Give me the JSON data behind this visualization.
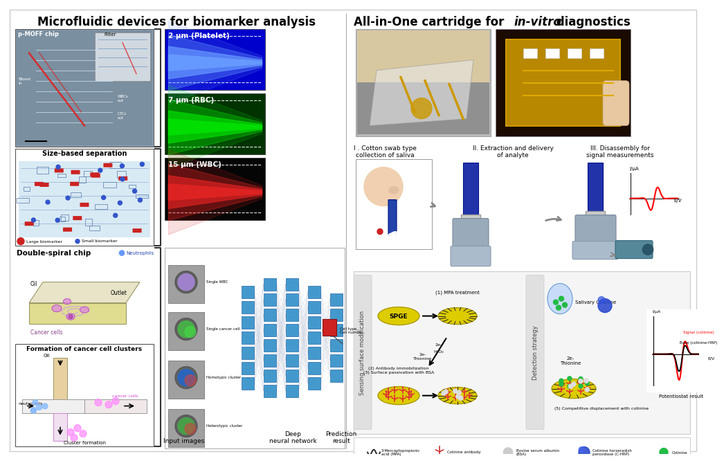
{
  "title_left": "Microfluidic devices for biomarker analysis",
  "title_right_pre": "All-in-One cartridge for  ",
  "title_right_italic": "in-vitro",
  "title_right_post": " diagnostics",
  "fig_width": 10.0,
  "fig_height": 6.46,
  "labels": {
    "pmoff": "p-MOFF chip",
    "filter": "Filter",
    "blood_in": "Blood\nin",
    "wbcs_out": "WBCs\nout",
    "ctcs_out": "CTCs\nout",
    "size_sep": "Size-based separation",
    "large_bm": "Large biomarker",
    "small_bm": "Small biomarker",
    "double_spiral": "Double-spiral chip",
    "neutrophils": "Neutrophils",
    "oil": "Oil",
    "outlet": "Outlet",
    "cancer_cells": "Cancer cells",
    "cancer_clusters": "Formation of cancer cell clusters",
    "neutrophils2": "neutrophils",
    "cancer_cells2": "cancer cells",
    "cluster_formation": "Cluster formation",
    "platelet": "2 μm (Platelet)",
    "rbc": "7 μm (RBC)",
    "wbc": "15 μm (WBC)",
    "single_wbc": "Single WBC",
    "single_cancer": "Single cancer cell",
    "homotypic": "Homotypic cluster",
    "heterotypic": "Heterotypic cluster",
    "input_images": "Input images",
    "deep_nn": "Deep\nneural network",
    "prediction": "Prediction\nresult",
    "cell_type": "Cell type..\nCell number..",
    "roman1": "I . Cotton swab type\ncollection of saliva",
    "roman2": "II. Extraction and delivery\nof analyte",
    "roman3": "III. Disassembly for\nsignal measurements",
    "sensing": "Sensing surface modification",
    "detection": "Detection strategy",
    "spge": "SPGE",
    "mpa_label": "(1) MPA treatment",
    "antibody_label": "(2) Antibody immobilization\n(3) Surface passivation with BSA",
    "thionine1": "2e-\nThionine",
    "h2o2": "H₂O₂",
    "salivary": "Salivary Cotinine",
    "thionine2": "2e-\nThionine",
    "competitive": "(5) Competitive displacement with cotinine",
    "potentiostat": "Potentiostat result",
    "signal_cotinine": "Signal (cotinine)",
    "base_hrp": "Base (cotinine-HRP)",
    "ev": "E/V",
    "iua": "I/μA",
    "legend1": "3-Mercaptopropionic\nacid (MPA)",
    "legend2": "Cotinine antibody",
    "legend3": "Bovine serum albumin\n(BSA)",
    "legend4": "Cotinine horseradish\nperoxidase (C-HRP)",
    "legend5": "Cotinine"
  }
}
